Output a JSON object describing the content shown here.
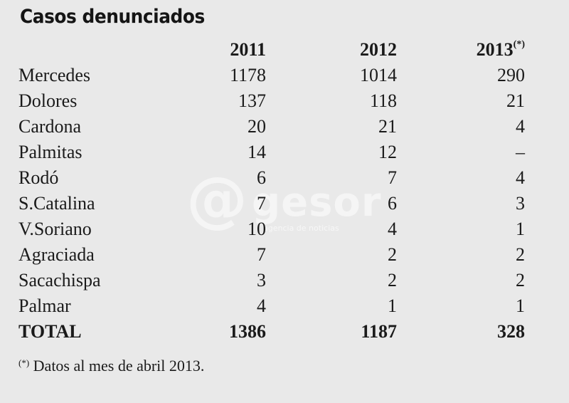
{
  "title": "Casos denunciados",
  "watermark": {
    "logo": "@",
    "word": "gesor",
    "tagline": "agencia de noticias"
  },
  "table": {
    "headers": [
      "2011",
      "2012",
      "2013"
    ],
    "header_marker": "(*)",
    "rows": [
      {
        "name": "Mercedes",
        "v2011": "1178",
        "v2012": "1014",
        "v2013": "290"
      },
      {
        "name": "Dolores",
        "v2011": "137",
        "v2012": "118",
        "v2013": "21"
      },
      {
        "name": "Cardona",
        "v2011": "20",
        "v2012": "21",
        "v2013": "4"
      },
      {
        "name": "Palmitas",
        "v2011": "14",
        "v2012": "12",
        "v2013": "–"
      },
      {
        "name": "Rodó",
        "v2011": "6",
        "v2012": "7",
        "v2013": "4"
      },
      {
        "name": "S.Catalina",
        "v2011": "7",
        "v2012": "6",
        "v2013": "3"
      },
      {
        "name": "V.Soriano",
        "v2011": "10",
        "v2012": "4",
        "v2013": "1"
      },
      {
        "name": "Agraciada",
        "v2011": "7",
        "v2012": "2",
        "v2013": "2"
      },
      {
        "name": "Sacachispa",
        "v2011": "3",
        "v2012": "2",
        "v2013": "2"
      },
      {
        "name": "Palmar",
        "v2011": "4",
        "v2012": "1",
        "v2013": "1"
      }
    ],
    "total": {
      "name": "TOTAL",
      "v2011": "1386",
      "v2012": "1187",
      "v2013": "328"
    }
  },
  "footnote": {
    "marker": "(*)",
    "text": " Datos al mes de abril 2013."
  }
}
